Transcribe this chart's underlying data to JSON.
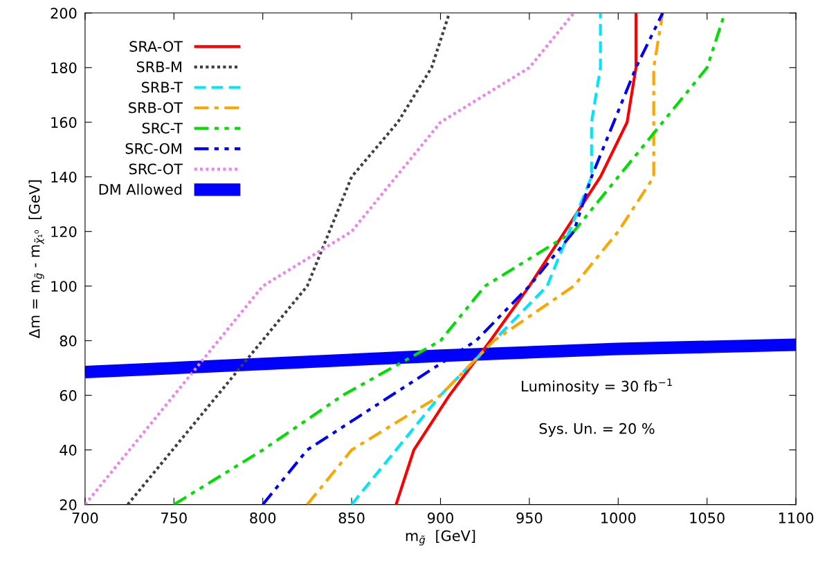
{
  "chart_data": {
    "type": "line",
    "xlabel": "m$_{g̃}$  [GeV]",
    "ylabel": "Δm = m$_{g̃}$ - m$_{χ̃₁⁰}$  [GeV]",
    "xlim": [
      700,
      1100
    ],
    "ylim": [
      20,
      200
    ],
    "xticks": [
      700,
      750,
      800,
      850,
      900,
      950,
      1000,
      1050,
      1100
    ],
    "yticks": [
      20,
      40,
      60,
      80,
      100,
      120,
      140,
      160,
      180,
      200
    ],
    "grid": false,
    "legend": "top left",
    "marker": "none",
    "annotations": [
      "Luminosity = 30 fb$^{−1}$",
      "Sys. Un. = 20 %"
    ],
    "series": [
      {
        "name": "SRA-OT",
        "color": "#ff0000",
        "line_style": "solid",
        "x": [
          875,
          885,
          905,
          928,
          950,
          970,
          990,
          1005,
          1010,
          1010
        ],
        "values": [
          20,
          40,
          60,
          80,
          100,
          120,
          140,
          160,
          180,
          200
        ]
      },
      {
        "name": "SRB-M",
        "color": "#404040",
        "line_style": "dotted",
        "x": [
          724,
          825,
          850,
          876,
          895,
          905
        ],
        "values": [
          20,
          100,
          140,
          160,
          180,
          200
        ]
      },
      {
        "name": "SRB-T",
        "color": "#00e5ff",
        "line_style": "dashed",
        "x": [
          850,
          900,
          960,
          985,
          985,
          990,
          990
        ],
        "values": [
          20,
          60,
          100,
          140,
          160,
          180,
          200
        ]
      },
      {
        "name": "SRB-OT",
        "color": "#ffa500",
        "line_style": "dashdot",
        "x": [
          825,
          850,
          900,
          930,
          975,
          1000,
          1020,
          1020,
          1020,
          1025
        ],
        "values": [
          20,
          40,
          60,
          80,
          100,
          120,
          140,
          160,
          180,
          200
        ]
      },
      {
        "name": "SRC-T",
        "color": "#00e000",
        "line_style": "dashdotdot",
        "x": [
          750,
          800,
          845,
          900,
          925,
          975,
          1025,
          1050,
          1060
        ],
        "values": [
          20,
          40,
          60,
          80,
          100,
          120,
          160,
          180,
          200
        ]
      },
      {
        "name": "SRC-OM",
        "color": "#0000ff",
        "line_style": "dashdotdot",
        "x": [
          800,
          825,
          920,
          950,
          975,
          985,
          1010,
          1025
        ],
        "values": [
          20,
          40,
          80,
          100,
          120,
          140,
          180,
          200
        ]
      },
      {
        "name": "SRC-OT",
        "color": "#ee82ee",
        "line_style": "dotted",
        "x": [
          700,
          800,
          850,
          900,
          950,
          975
        ],
        "values": [
          20,
          100,
          120,
          160,
          180,
          200
        ]
      },
      {
        "name": "DM Allowed",
        "color": "#0000ff",
        "line_style": "solid",
        "x": [
          700,
          800,
          900,
          1000,
          1100
        ],
        "values": [
          68.5,
          71.5,
          74.5,
          77,
          78.5
        ]
      }
    ]
  }
}
